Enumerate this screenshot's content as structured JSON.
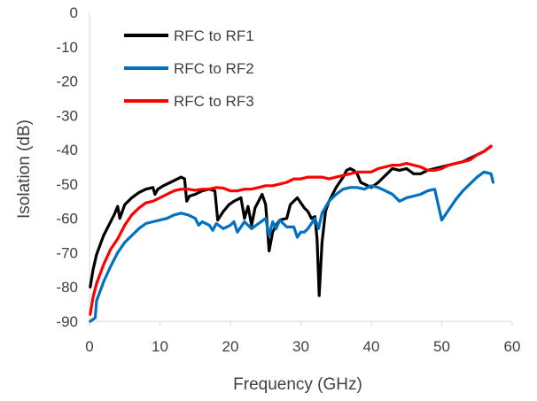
{
  "chart_data": {
    "type": "line",
    "xlabel": "Frequency (GHz)",
    "ylabel": "Isolation (dB)",
    "xlim": [
      0,
      60
    ],
    "ylim": [
      -90,
      0
    ],
    "xticks": [
      "0",
      "10",
      "20",
      "30",
      "40",
      "50",
      "60"
    ],
    "yticks": [
      "0",
      "-10",
      "-20",
      "-30",
      "-40",
      "-50",
      "-60",
      "-70",
      "-80",
      "-90"
    ],
    "grid": false,
    "legend_position": "top-left",
    "series": [
      {
        "name": "RFC to RF1",
        "color": "#000000",
        "points": [
          [
            0.1,
            -80
          ],
          [
            0.5,
            -75
          ],
          [
            1,
            -70.5
          ],
          [
            2,
            -65
          ],
          [
            3,
            -61
          ],
          [
            3.5,
            -59
          ],
          [
            4,
            -56.5
          ],
          [
            4.3,
            -60
          ],
          [
            5,
            -56
          ],
          [
            6,
            -54
          ],
          [
            7,
            -52.5
          ],
          [
            8,
            -51.5
          ],
          [
            9,
            -51
          ],
          [
            9.3,
            -53
          ],
          [
            9.7,
            -51.5
          ],
          [
            10.5,
            -50.5
          ],
          [
            11.5,
            -49.5
          ],
          [
            12.5,
            -48.5
          ],
          [
            13,
            -48
          ],
          [
            13.5,
            -48.5
          ],
          [
            13.8,
            -55
          ],
          [
            14.2,
            -53.5
          ],
          [
            15,
            -53
          ],
          [
            16,
            -52
          ],
          [
            17,
            -51.5
          ],
          [
            17.8,
            -52
          ],
          [
            18.2,
            -60.5
          ],
          [
            19,
            -58
          ],
          [
            19.8,
            -56
          ],
          [
            20.5,
            -55
          ],
          [
            21.5,
            -54
          ],
          [
            22,
            -60
          ],
          [
            22.5,
            -56.5
          ],
          [
            23,
            -62
          ],
          [
            23.5,
            -57
          ],
          [
            24.5,
            -53
          ],
          [
            25,
            -56
          ],
          [
            25.5,
            -69.5
          ],
          [
            26,
            -64
          ],
          [
            26.5,
            -62
          ],
          [
            27,
            -60.5
          ],
          [
            28,
            -60
          ],
          [
            28.5,
            -56
          ],
          [
            29.5,
            -54
          ],
          [
            30.5,
            -57
          ],
          [
            31,
            -58
          ],
          [
            31.5,
            -60
          ],
          [
            32,
            -59.5
          ],
          [
            32.3,
            -66
          ],
          [
            32.6,
            -82.5
          ],
          [
            33,
            -67
          ],
          [
            33.5,
            -58
          ],
          [
            34,
            -55
          ],
          [
            35,
            -51
          ],
          [
            36,
            -48
          ],
          [
            36.5,
            -46
          ],
          [
            37,
            -45.5
          ],
          [
            37.5,
            -46
          ],
          [
            38,
            -47
          ],
          [
            38.5,
            -49.5
          ],
          [
            39,
            -50
          ],
          [
            40,
            -51
          ],
          [
            41,
            -49.5
          ],
          [
            42,
            -47.5
          ],
          [
            43,
            -45.5
          ],
          [
            44,
            -46
          ],
          [
            45,
            -45.5
          ],
          [
            46,
            -47
          ],
          [
            47,
            -47
          ],
          [
            48,
            -46
          ],
          [
            49,
            -45.5
          ],
          [
            50,
            -45
          ],
          [
            51,
            -44.5
          ],
          [
            52,
            -44
          ],
          [
            53,
            -43.5
          ],
          [
            54,
            -42.5
          ],
          [
            55,
            -41.5
          ],
          [
            56,
            -40.5
          ],
          [
            57,
            -39
          ]
        ]
      },
      {
        "name": "RFC to RF2",
        "color": "#0070C0",
        "points": [
          [
            0.1,
            -90
          ],
          [
            0.8,
            -89
          ],
          [
            1,
            -84
          ],
          [
            2,
            -78.5
          ],
          [
            3,
            -74
          ],
          [
            4,
            -70
          ],
          [
            5,
            -67
          ],
          [
            6,
            -65
          ],
          [
            7,
            -63
          ],
          [
            8,
            -61.5
          ],
          [
            9,
            -61
          ],
          [
            10,
            -60.5
          ],
          [
            11,
            -60
          ],
          [
            12,
            -59
          ],
          [
            13,
            -58.5
          ],
          [
            14,
            -59
          ],
          [
            15,
            -60
          ],
          [
            15.5,
            -62
          ],
          [
            16,
            -61
          ],
          [
            17,
            -62
          ],
          [
            17.5,
            -63.5
          ],
          [
            18,
            -61.5
          ],
          [
            19,
            -63
          ],
          [
            20,
            -62
          ],
          [
            20.5,
            -61
          ],
          [
            21,
            -64
          ],
          [
            22,
            -61
          ],
          [
            23,
            -63
          ],
          [
            24,
            -61.5
          ],
          [
            25,
            -60
          ],
          [
            25.5,
            -65
          ],
          [
            26,
            -61
          ],
          [
            26.5,
            -63
          ],
          [
            27,
            -60.5
          ],
          [
            28,
            -62.5
          ],
          [
            29,
            -62.5
          ],
          [
            29.5,
            -65.5
          ],
          [
            30,
            -64
          ],
          [
            30.5,
            -64
          ],
          [
            31,
            -63
          ],
          [
            32,
            -60
          ],
          [
            32.5,
            -63
          ],
          [
            33,
            -58.5
          ],
          [
            34,
            -55
          ],
          [
            35,
            -53
          ],
          [
            36,
            -51.5
          ],
          [
            37,
            -51
          ],
          [
            38,
            -51
          ],
          [
            39,
            -51.5
          ],
          [
            40,
            -50.5
          ],
          [
            41,
            -51
          ],
          [
            42,
            -52
          ],
          [
            43,
            -53
          ],
          [
            44,
            -55
          ],
          [
            45,
            -54
          ],
          [
            46,
            -53.5
          ],
          [
            47,
            -53
          ],
          [
            48,
            -52
          ],
          [
            49,
            -51.5
          ],
          [
            49.5,
            -56
          ],
          [
            50,
            -60.5
          ],
          [
            51,
            -57.5
          ],
          [
            52,
            -54.5
          ],
          [
            53,
            -52
          ],
          [
            54,
            -50
          ],
          [
            55,
            -48
          ],
          [
            56,
            -46.5
          ],
          [
            57,
            -47
          ],
          [
            57.3,
            -49.5
          ]
        ]
      },
      {
        "name": "RFC to RF3",
        "color": "#FF0000",
        "points": [
          [
            0.1,
            -88
          ],
          [
            0.5,
            -83
          ],
          [
            1,
            -79
          ],
          [
            2,
            -73.5
          ],
          [
            3,
            -69
          ],
          [
            4,
            -66
          ],
          [
            5,
            -62
          ],
          [
            6,
            -59
          ],
          [
            7,
            -57
          ],
          [
            8,
            -55.5
          ],
          [
            9,
            -55
          ],
          [
            10,
            -54
          ],
          [
            11,
            -53
          ],
          [
            12,
            -52
          ],
          [
            13,
            -51.5
          ],
          [
            14,
            -51.5
          ],
          [
            15,
            -51.8
          ],
          [
            16,
            -51.5
          ],
          [
            17,
            -51.5
          ],
          [
            18,
            -51
          ],
          [
            19,
            -51.2
          ],
          [
            20,
            -52
          ],
          [
            21,
            -52
          ],
          [
            22,
            -51.5
          ],
          [
            23,
            -51.5
          ],
          [
            24,
            -51
          ],
          [
            25,
            -50.5
          ],
          [
            26,
            -50.5
          ],
          [
            27,
            -50
          ],
          [
            28,
            -49.5
          ],
          [
            29,
            -48.5
          ],
          [
            30,
            -48.5
          ],
          [
            31,
            -48
          ],
          [
            32,
            -48
          ],
          [
            33,
            -48
          ],
          [
            34,
            -48.5
          ],
          [
            35,
            -48
          ],
          [
            36,
            -47.5
          ],
          [
            37,
            -47
          ],
          [
            38,
            -46.5
          ],
          [
            39,
            -46.5
          ],
          [
            40,
            -46.5
          ],
          [
            41,
            -45.5
          ],
          [
            42,
            -45
          ],
          [
            43,
            -44.5
          ],
          [
            44,
            -44.5
          ],
          [
            45,
            -44
          ],
          [
            46,
            -44.5
          ],
          [
            47,
            -45
          ],
          [
            48,
            -46
          ],
          [
            49,
            -46
          ],
          [
            50,
            -45.5
          ],
          [
            51,
            -44.5
          ],
          [
            52,
            -44
          ],
          [
            53,
            -43.5
          ],
          [
            54,
            -43
          ],
          [
            55,
            -41.5
          ],
          [
            56,
            -40.5
          ],
          [
            57,
            -39
          ]
        ]
      }
    ]
  }
}
